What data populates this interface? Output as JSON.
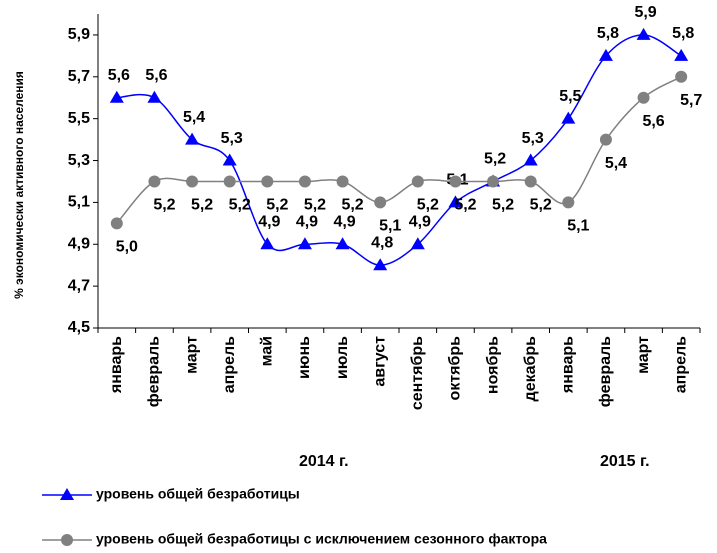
{
  "chart_data": {
    "type": "line",
    "ylabel": "% экономически активного населения",
    "categories": [
      "январь",
      "февраль",
      "март",
      "апрель",
      "май",
      "июнь",
      "июль",
      "август",
      "сентябрь",
      "октябрь",
      "ноябрь",
      "декабрь",
      "январь",
      "февраль",
      "март",
      "апрель"
    ],
    "groups": [
      {
        "label": "2014 г.",
        "from": 0,
        "to": 11
      },
      {
        "label": "2015 г.",
        "from": 12,
        "to": 15
      }
    ],
    "series": [
      {
        "name": "уровень общей безработицы",
        "color": "#0000ff",
        "marker": "triangle",
        "values": [
          5.6,
          5.6,
          5.4,
          5.3,
          4.9,
          4.9,
          4.9,
          4.8,
          4.9,
          5.1,
          5.2,
          5.3,
          5.5,
          5.8,
          5.9,
          5.8
        ],
        "value_labels": [
          "5,6",
          "5,6",
          "5,4",
          "5,3",
          "4,9",
          "4,9",
          "4,9",
          "4,8",
          "4,9",
          "5,1",
          "5,2",
          "5,3",
          "5,5",
          "5,8",
          "5,9",
          "5,8"
        ]
      },
      {
        "name": "уровень общей безработицы с исключением сезонного фактора",
        "color": "#808080",
        "marker": "circle",
        "values": [
          5.0,
          5.2,
          5.2,
          5.2,
          5.2,
          5.2,
          5.2,
          5.1,
          5.2,
          5.2,
          5.2,
          5.2,
          5.1,
          5.4,
          5.6,
          5.7
        ],
        "value_labels": [
          "5,0",
          "5,2",
          "5,2",
          "5,2",
          "5,2",
          "5,2",
          "5,2",
          "5,1",
          "5,2",
          "5,2",
          "5,2",
          "5,2",
          "5,1",
          "5,4",
          "5,6",
          "5,7"
        ]
      }
    ],
    "ylim": [
      4.5,
      6.0
    ],
    "yticks": [
      {
        "value": 4.5,
        "label": "4,5"
      },
      {
        "value": 4.7,
        "label": "4,7"
      },
      {
        "value": 4.9,
        "label": "4,9"
      },
      {
        "value": 5.1,
        "label": "5,1"
      },
      {
        "value": 5.3,
        "label": "5,3"
      },
      {
        "value": 5.5,
        "label": "5,5"
      },
      {
        "value": 5.7,
        "label": "5,7"
      },
      {
        "value": 5.9,
        "label": "5,9"
      }
    ],
    "grid": false
  }
}
